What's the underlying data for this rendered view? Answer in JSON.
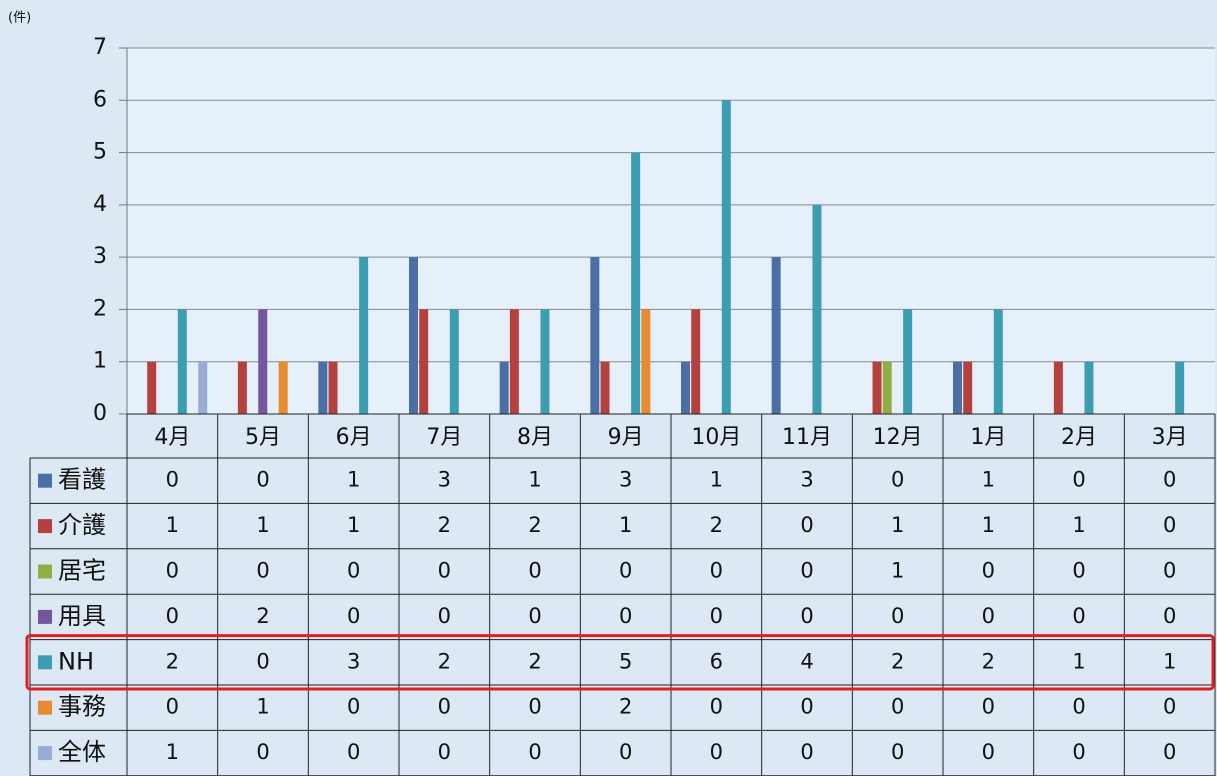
{
  "chart_data": {
    "type": "bar",
    "y_unit": "(件)",
    "categories": [
      "4月",
      "5月",
      "6月",
      "7月",
      "8月",
      "9月",
      "10月",
      "11月",
      "12月",
      "1月",
      "2月",
      "3月"
    ],
    "series": [
      {
        "name": "看護",
        "color": "#4a6fa5",
        "values": [
          0,
          0,
          1,
          3,
          1,
          3,
          1,
          3,
          0,
          1,
          0,
          0
        ]
      },
      {
        "name": "介護",
        "color": "#b5413f",
        "values": [
          1,
          1,
          1,
          2,
          2,
          1,
          2,
          0,
          1,
          1,
          1,
          0
        ]
      },
      {
        "name": "居宅",
        "color": "#8fb040",
        "values": [
          0,
          0,
          0,
          0,
          0,
          0,
          0,
          0,
          1,
          0,
          0,
          0
        ]
      },
      {
        "name": "用具",
        "color": "#7456a0",
        "values": [
          0,
          2,
          0,
          0,
          0,
          0,
          0,
          0,
          0,
          0,
          0,
          0
        ]
      },
      {
        "name": "NH",
        "color": "#3d9db3",
        "values": [
          2,
          0,
          3,
          2,
          2,
          5,
          6,
          4,
          2,
          2,
          1,
          1
        ]
      },
      {
        "name": "事務",
        "color": "#e88b2e",
        "values": [
          0,
          1,
          0,
          0,
          0,
          2,
          0,
          0,
          0,
          0,
          0,
          0
        ]
      },
      {
        "name": "全体",
        "color": "#98acd6",
        "values": [
          1,
          0,
          0,
          0,
          0,
          0,
          0,
          0,
          0,
          0,
          0,
          0
        ]
      }
    ],
    "ylim": [
      0,
      7
    ],
    "yticks": [
      0,
      1,
      2,
      3,
      4,
      5,
      6,
      7
    ],
    "grid": true,
    "data_table": true
  }
}
